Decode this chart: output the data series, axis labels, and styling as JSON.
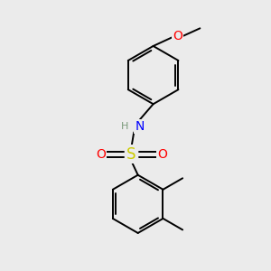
{
  "background_color": "#ebebeb",
  "atom_colors": {
    "C": "#000000",
    "N": "#0000ff",
    "O": "#ff0000",
    "S": "#cccc00",
    "H": "#7a9a7a"
  },
  "bond_color": "#000000",
  "bond_width": 1.4,
  "dbo": 0.042,
  "figsize": [
    3.0,
    3.0
  ],
  "dpi": 100,
  "xlim": [
    -0.5,
    2.5
  ],
  "ylim": [
    -0.3,
    3.0
  ]
}
